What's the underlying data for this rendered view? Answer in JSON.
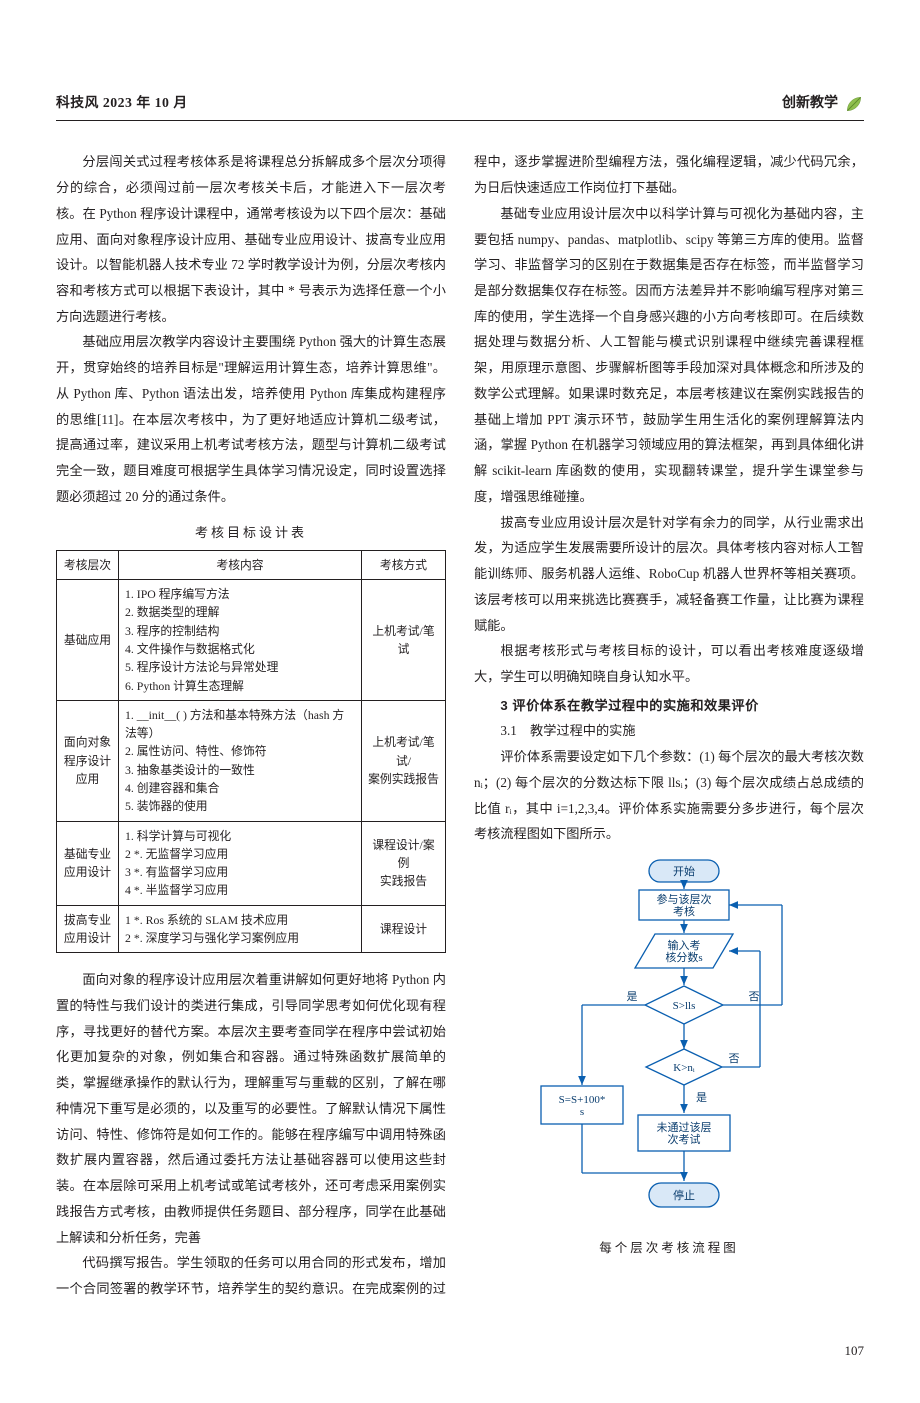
{
  "header": {
    "left": "科技风 2023 年 10 月",
    "right": "创新教学"
  },
  "leftCol": {
    "p1": "分层闯关式过程考核体系是将课程总分拆解成多个层次分项得分的综合，必须闯过前一层次考核关卡后，才能进入下一层次考核。在 Python 程序设计课程中，通常考核设为以下四个层次：基础应用、面向对象程序设计应用、基础专业应用设计、拔高专业应用设计。以智能机器人技术专业 72 学时教学设计为例，分层次考核内容和考核方式可以根据下表设计，其中 * 号表示为选择任意一个小方向选题进行考核。",
    "p2": "基础应用层次教学内容设计主要围绕 Python 强大的计算生态展开，贯穿始终的培养目标是\"理解运用计算生态，培养计算思维\"。从 Python 库、Python 语法出发，培养使用 Python 库集成构建程序的思维[11]。在本层次考核中，为了更好地适应计算机二级考试，提高通过率，建议采用上机考试考核方法，题型与计算机二级考试完全一致，题目难度可根据学生具体学习情况设定，同时设置选择题必须超过 20 分的通过条件。",
    "tableCaption": "考核目标设计表",
    "table": {
      "headers": [
        "考核层次",
        "考核内容",
        "考核方式"
      ],
      "rows": [
        {
          "c1": "基础应用",
          "c2": "1. IPO 程序编写方法\n2. 数据类型的理解\n3. 程序的控制结构\n4. 文件操作与数据格式化\n5. 程序设计方法论与异常处理\n6. Python 计算生态理解",
          "c3": "上机考试/笔试"
        },
        {
          "c1": "面向对象\n程序设计\n应用",
          "c2": "1. __init__( ) 方法和基本特殊方法（hash 方法等）\n2. 属性访问、特性、修饰符\n3. 抽象基类设计的一致性\n4. 创建容器和集合\n5. 装饰器的使用",
          "c3": "上机考试/笔试/\n案例实践报告"
        },
        {
          "c1": "基础专业\n应用设计",
          "c2": "1. 科学计算与可视化\n2 *. 无监督学习应用\n3 *. 有监督学习应用\n4 *. 半监督学习应用",
          "c3": "课程设计/案例\n实践报告"
        },
        {
          "c1": "拔高专业\n应用设计",
          "c2": "1 *. Ros 系统的 SLAM 技术应用\n2 *. 深度学习与强化学习案例应用",
          "c3": "课程设计"
        }
      ]
    },
    "p3": "面向对象的程序设计应用层次着重讲解如何更好地将 Python 内置的特性与我们设计的类进行集成，引导同学思考如何优化现有程序，寻找更好的替代方案。本层次主要考查同学在程序中尝试初始化更加复杂的对象，例如集合和容器。通过特殊函数扩展简单的类，掌握继承操作的默认行为，理解重写与重载的区别，了解在哪种情况下重写是必须的，以及重写的必要性。了解默认情况下属性访问、特性、修饰符是如何工作的。能够在程序编写中调用特殊函数扩展内置容器，然后通过委托方法让基础容器可以使用这些封装。在本层除可采用上机考试或笔试考核外，还可考虑采用案例实践报告方式考核，由教师提供任务题目、部分程序，同学在此基础上解读和分析任务，完善"
  },
  "rightCol": {
    "p4": "代码撰写报告。学生领取的任务可以用合同的形式发布，增加一个合同签署的教学环节，培养学生的契约意识。在完成案例的过程中，逐步掌握进阶型编程方法，强化编程逻辑，减少代码冗余，为日后快速适应工作岗位打下基础。",
    "p5": "基础专业应用设计层次中以科学计算与可视化为基础内容，主要包括 numpy、pandas、matplotlib、scipy 等第三方库的使用。监督学习、非监督学习的区别在于数据集是否存在标签，而半监督学习是部分数据集仅存在标签。因而方法差异并不影响编写程序对第三库的使用，学生选择一个自身感兴趣的小方向考核即可。在后续数据处理与数据分析、人工智能与模式识别课程中继续完善课程框架，用原理示意图、步骤解析图等手段加深对具体概念和所涉及的数学公式理解。如果课时数充足，本层考核建议在案例实践报告的基础上增加 PPT 演示环节，鼓励学生用生活化的案例理解算法内涵，掌握 Python 在机器学习领域应用的算法框架，再到具体细化讲解 scikit-learn 库函数的使用，实现翻转课堂，提升学生课堂参与度，增强思维碰撞。",
    "p6": "拔高专业应用设计层次是针对学有余力的同学，从行业需求出发，为适应学生发展需要所设计的层次。具体考核内容对标人工智能训练师、服务机器人运维、RoboCup 机器人世界杯等相关赛项。该层考核可以用来挑选比赛赛手，减轻备赛工作量，让比赛为课程赋能。",
    "p7": "根据考核形式与考核目标的设计，可以看出考核难度逐级增大，学生可以明确知晓自身认知水平。",
    "sec": "3 评价体系在教学过程中的实施和效果评价",
    "sub": "3.1　教学过程中的实施",
    "p8": "评价体系需要设定如下几个参数：(1) 每个层次的最大考核次数 nᵢ；(2) 每个层次的分数达标下限 llsᵢ；(3) 每个层次成绩占总成绩的比值 rᵢ，其中 i=1,2,3,4。评价体系实施需要分多步进行，每个层次考核流程图如下图所示。",
    "flowCaption": "每个层次考核流程图"
  },
  "flow": {
    "nodes": {
      "start": "开始",
      "partake": "参与该层次\n考核",
      "input": "输入考\n核分数s",
      "cond1": "S>lls",
      "cond2": "K>nᵢ",
      "calc": "S=S+100*\ns",
      "fail": "未通过该层\n次考试",
      "stop": "停止"
    },
    "labels": {
      "yes": "是",
      "no": "否"
    },
    "colors": {
      "box_border": "#0a5fb0",
      "box_fill": "#ffffff",
      "accent_fill": "#d9e8f7",
      "edge": "#0a5fb0",
      "text": "#0a3d6e"
    }
  },
  "pageNumber": "107"
}
